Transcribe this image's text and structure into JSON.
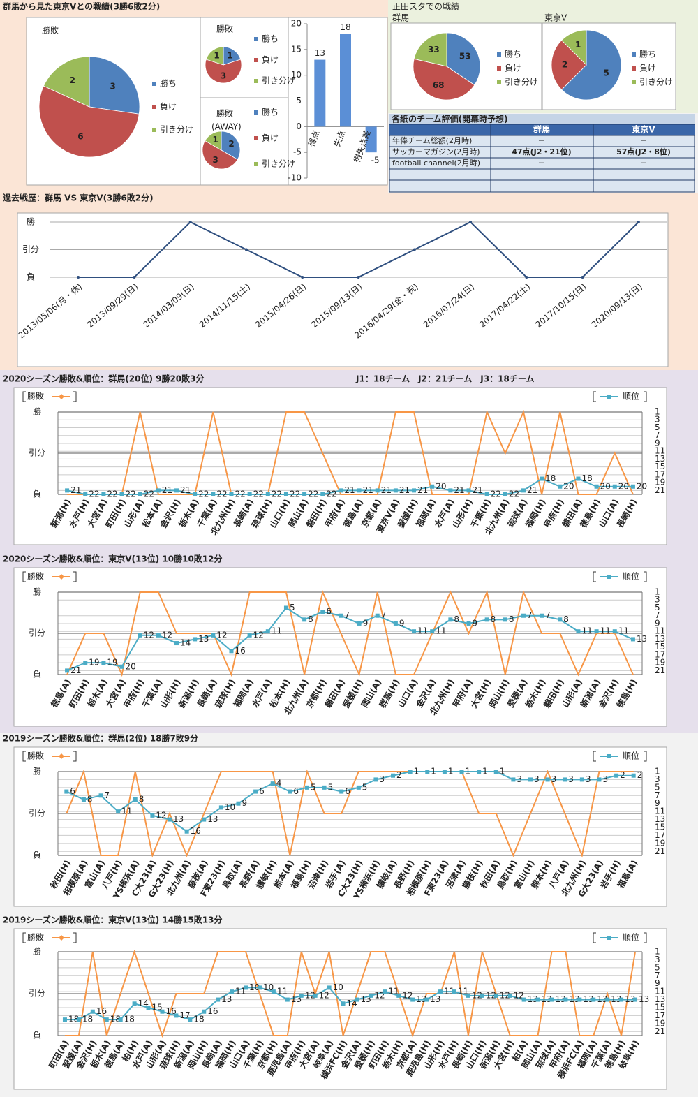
{
  "header": {
    "title": "群馬から見た東京Vとの戦績(3勝6敗2分)",
    "home_title": "正田スタでの戦績",
    "league_note": "J1：18チーム　J2：21チーム　J3：18チーム"
  },
  "table": {
    "title": "各紙のチーム評価(開幕時予想)",
    "columns": [
      "群馬",
      "東京V"
    ],
    "rows": [
      [
        "年俸チーム総額(2月時)",
        "－",
        "－"
      ],
      [
        "サッカーマガジン(2月時)",
        "47点(J2・21位)",
        "57点(J2・8位)"
      ],
      [
        "football channel(2月時)",
        "－",
        "－"
      ]
    ]
  },
  "chart_data": [
    {
      "type": "pie",
      "title": "勝敗",
      "categories": [
        "勝ち",
        "負け",
        "引き分け"
      ],
      "values": [
        3,
        6,
        2
      ],
      "colors": [
        "#4f81bd",
        "#c0504d",
        "#9bbb59"
      ]
    },
    {
      "type": "pie",
      "title": "勝敗",
      "categories": [
        "勝ち",
        "負け",
        "引き分け"
      ],
      "values": [
        1,
        3,
        1
      ],
      "colors": [
        "#4f81bd",
        "#c0504d",
        "#9bbb59"
      ]
    },
    {
      "type": "pie",
      "title": "勝敗",
      "subtitle": "(AWAY)",
      "categories": [
        "勝ち",
        "負け",
        "引き分け"
      ],
      "values": [
        2,
        3,
        1
      ],
      "colors": [
        "#4f81bd",
        "#c0504d",
        "#9bbb59"
      ]
    },
    {
      "type": "bar",
      "categories": [
        "得点",
        "失点",
        "得失点差"
      ],
      "values": [
        13,
        18,
        -5
      ],
      "color": "#5b8fd6",
      "ylim": [
        -10,
        20
      ],
      "yticks": [
        -10,
        -5,
        0,
        5,
        10,
        15,
        20
      ]
    },
    {
      "type": "pie",
      "title": "群馬",
      "categories": [
        "勝ち",
        "負け",
        "引き分け"
      ],
      "values": [
        53,
        68,
        33
      ],
      "colors": [
        "#4f81bd",
        "#c0504d",
        "#9bbb59"
      ]
    },
    {
      "type": "pie",
      "title": "東京V",
      "categories": [
        "勝ち",
        "負け",
        "引き分け"
      ],
      "values": [
        5,
        2,
        1
      ],
      "colors": [
        "#4f81bd",
        "#c0504d",
        "#9bbb59"
      ]
    },
    {
      "type": "line",
      "title": "過去戦歴：群馬 VS 東京V(3勝6敗2分)",
      "categories": [
        "2013/05/06(月・休)",
        "2013/09/29(日)",
        "2014/03/09(日)",
        "2014/11/15(土)",
        "2015/04/26(日)",
        "2015/09/13(日)",
        "2016/04/29(金・祝)",
        "2016/07/24(日)",
        "2017/04/22(土)",
        "2017/10/15(日)",
        "2020/09/13(日)"
      ],
      "values": [
        -1,
        -1,
        1,
        0,
        -1,
        -1,
        0,
        1,
        -1,
        -1,
        1
      ],
      "color": "#2f4f7f",
      "ylim": [
        -1,
        1
      ],
      "yticks": [
        {
          "value": 1,
          "label": "勝"
        },
        {
          "value": 0,
          "label": "引分"
        },
        {
          "value": -1,
          "label": "負"
        }
      ]
    },
    {
      "type": "line",
      "title": "2020シーズン勝敗&順位：群馬(20位) 9勝20敗3分",
      "categories": [
        "新潟(H)",
        "水戸(H)",
        "大宮(A)",
        "町田(H)",
        "山形(A)",
        "松本(A)",
        "金沢(H)",
        "栃木(A)",
        "千葉(A)",
        "北九州(H)",
        "長崎(A)",
        "琉球(H)",
        "山口(H)",
        "岡山(A)",
        "磐田(H)",
        "甲府(A)",
        "徳島(A)",
        "京都(A)",
        "東京V(A)",
        "愛媛(H)",
        "福岡(A)",
        "水戸(A)",
        "山形(H)",
        "千葉(H)",
        "北九州(A)",
        "琉球(A)",
        "福岡(H)",
        "甲府(H)",
        "磐田(A)",
        "徳島(H)",
        "山口(A)",
        "長崎(H)"
      ],
      "series": [
        {
          "name": "勝敗",
          "color": "#f79646",
          "values": [
            -1,
            -1,
            -1,
            -1,
            1,
            -1,
            -1,
            -1,
            1,
            -1,
            -1,
            -1,
            1,
            1,
            0,
            -1,
            -1,
            -1,
            1,
            1,
            -1,
            -1,
            -1,
            1,
            0,
            1,
            -1,
            1,
            -1,
            -1,
            0,
            -1
          ]
        },
        {
          "name": "順位",
          "color": "#4bacc6",
          "axis": "y2",
          "marker": "square",
          "data_labels": true,
          "values": [
            21,
            22,
            22,
            22,
            22,
            21,
            21,
            22,
            22,
            22,
            22,
            22,
            22,
            22,
            22,
            21,
            21,
            21,
            21,
            21,
            20,
            21,
            21,
            22,
            22,
            21,
            18,
            20,
            18,
            20,
            20,
            20
          ]
        }
      ],
      "ylim": [
        -1,
        1
      ],
      "yticks": [
        {
          "value": 1,
          "label": "勝"
        },
        {
          "value": 0,
          "label": "引分"
        },
        {
          "value": -1,
          "label": "負"
        }
      ],
      "y2lim": [
        22,
        1
      ],
      "y2ticks": [
        1,
        3,
        5,
        7,
        9,
        11,
        13,
        15,
        17,
        19,
        21
      ]
    },
    {
      "type": "line",
      "title": "2020シーズン勝敗&順位：東京V(13位) 10勝10敗12分",
      "categories": [
        "徳島(A)",
        "町田(H)",
        "栃木(A)",
        "大宮(A)",
        "甲府(H)",
        "千葉(A)",
        "山形(H)",
        "新潟(H)",
        "長崎(A)",
        "琉球(H)",
        "福岡(A)",
        "水戸(A)",
        "松本(H)",
        "北九州(A)",
        "京都(H)",
        "磐田(A)",
        "愛媛(H)",
        "岡山(A)",
        "群馬(H)",
        "山口(A)",
        "金沢(A)",
        "北九州(H)",
        "甲府(A)",
        "大宮(H)",
        "岡山(H)",
        "愛媛(A)",
        "栃木(H)",
        "磐田(H)",
        "山形(A)",
        "新潟(A)",
        "金沢(H)",
        "徳島(H)"
      ],
      "series": [
        {
          "name": "勝敗",
          "color": "#f79646",
          "values": [
            -1,
            0,
            0,
            -1,
            1,
            1,
            0,
            0,
            0,
            -1,
            1,
            1,
            1,
            -1,
            1,
            0,
            -1,
            1,
            -1,
            -1,
            0,
            1,
            0,
            1,
            -1,
            1,
            0,
            0,
            -1,
            0,
            0,
            -1
          ]
        },
        {
          "name": "順位",
          "color": "#4bacc6",
          "axis": "y2",
          "marker": "square",
          "data_labels": true,
          "values": [
            21,
            19,
            19,
            20,
            12,
            12,
            14,
            13,
            12,
            16,
            12,
            11,
            5,
            8,
            6,
            7,
            9,
            7,
            9,
            11,
            11,
            8,
            9,
            8,
            8,
            7,
            7,
            8,
            11,
            11,
            11,
            13
          ]
        }
      ],
      "ylim": [
        -1,
        1
      ],
      "yticks": [
        {
          "value": 1,
          "label": "勝"
        },
        {
          "value": 0,
          "label": "引分"
        },
        {
          "value": -1,
          "label": "負"
        }
      ],
      "y2lim": [
        22,
        1
      ],
      "y2ticks": [
        1,
        3,
        5,
        7,
        9,
        11,
        13,
        15,
        17,
        19,
        21
      ]
    },
    {
      "type": "line",
      "title": "2019シーズン勝敗&順位：群馬(2位) 18勝7敗9分",
      "categories": [
        "秋田(H)",
        "相模原(A)",
        "富山(A)",
        "八戸(H)",
        "YS横浜(A)",
        "C大23(A)",
        "G大23(H)",
        "北九州(A)",
        "藤枝(A)",
        "F東23(H)",
        "鳥取(A)",
        "長野(A)",
        "讃岐(H)",
        "熊本(A)",
        "福島(H)",
        "沼津(H)",
        "岩手(A)",
        "C大23(H)",
        "YS横浜(H)",
        "讃岐(A)",
        "長野(H)",
        "相模原(H)",
        "F東23(A)",
        "沼津(A)",
        "藤枝(H)",
        "秋田(A)",
        "鳥取(H)",
        "富山(H)",
        "熊本(H)",
        "八戸(A)",
        "北九州(H)",
        "G大23(A)",
        "岩手(H)",
        "福島(A)"
      ],
      "series": [
        {
          "name": "勝敗",
          "color": "#f79646",
          "values": [
            0,
            1,
            -1,
            -1,
            1,
            -1,
            0,
            -1,
            0,
            1,
            1,
            1,
            1,
            -1,
            1,
            0,
            0,
            1,
            1,
            1,
            1,
            1,
            1,
            1,
            0,
            0,
            -1,
            0,
            1,
            0,
            -1,
            1,
            1,
            1
          ]
        },
        {
          "name": "順位",
          "color": "#4bacc6",
          "axis": "y2",
          "marker": "square",
          "data_labels": true,
          "values": [
            6,
            8,
            7,
            11,
            8,
            12,
            13,
            16,
            13,
            10,
            9,
            6,
            4,
            6,
            5,
            5,
            6,
            5,
            3,
            2,
            1,
            1,
            1,
            1,
            1,
            1,
            3,
            3,
            3,
            3,
            3,
            3,
            2,
            2
          ]
        }
      ],
      "ylim": [
        -1,
        1
      ],
      "yticks": [
        {
          "value": 1,
          "label": "勝"
        },
        {
          "value": 0,
          "label": "引分"
        },
        {
          "value": -1,
          "label": "負"
        }
      ],
      "y2lim": [
        22,
        1
      ],
      "y2ticks": [
        1,
        3,
        5,
        7,
        9,
        11,
        13,
        15,
        17,
        19,
        21
      ]
    },
    {
      "type": "line",
      "title": "2019シーズン勝敗&順位：東京V(13位) 14勝15敗13分",
      "categories": [
        "町田(A)",
        "愛媛(A)",
        "金沢(H)",
        "栃木(A)",
        "徳島(A)",
        "柏(H)",
        "水戸(A)",
        "山形(A)",
        "琉球(H)",
        "新潟(A)",
        "岡山(H)",
        "長崎(A)",
        "福岡(H)",
        "山口(A)",
        "千葉(H)",
        "京都(H)",
        "鹿児島(A)",
        "甲府(H)",
        "大宮(A)",
        "岐阜(A)",
        "横浜FC(H)",
        "金沢(A)",
        "愛媛(H)",
        "町田(H)",
        "栃木(H)",
        "京都(A)",
        "鹿児島(H)",
        "山形(H)",
        "水戸(H)",
        "長崎(H)",
        "山口(H)",
        "新潟(H)",
        "大宮(H)",
        "柏(A)",
        "岡山(A)",
        "琉球(A)",
        "甲府(A)",
        "横浜FC(A)",
        "福岡(A)",
        "千葉(A)",
        "徳島(H)",
        "岐阜(H)"
      ],
      "series": [
        {
          "name": "勝敗",
          "color": "#f79646",
          "values": [
            -1,
            -1,
            1,
            -1,
            0,
            1,
            0,
            -1,
            0,
            0,
            0,
            1,
            1,
            1,
            0,
            -1,
            -1,
            1,
            0,
            1,
            -1,
            0,
            1,
            1,
            0,
            -1,
            0,
            0,
            1,
            -1,
            1,
            0,
            -1,
            -1,
            -1,
            1,
            1,
            -1,
            -1,
            0,
            -1,
            1
          ]
        },
        {
          "name": "順位",
          "color": "#4bacc6",
          "axis": "y2",
          "marker": "square",
          "data_labels": true,
          "values": [
            18,
            18,
            16,
            18,
            18,
            14,
            15,
            16,
            17,
            18,
            16,
            13,
            11,
            10,
            10,
            11,
            13,
            12,
            12,
            10,
            14,
            13,
            12,
            11,
            12,
            13,
            13,
            11,
            11,
            12,
            12,
            12,
            12,
            13,
            13,
            13,
            13,
            13,
            13,
            13,
            13,
            13
          ]
        }
      ],
      "ylim": [
        -1,
        1
      ],
      "yticks": [
        {
          "value": 1,
          "label": "勝"
        },
        {
          "value": 0,
          "label": "引分"
        },
        {
          "value": -1,
          "label": "負"
        }
      ],
      "y2lim": [
        22,
        1
      ],
      "y2ticks": [
        1,
        3,
        5,
        7,
        9,
        11,
        13,
        15,
        17,
        19,
        21
      ]
    }
  ]
}
